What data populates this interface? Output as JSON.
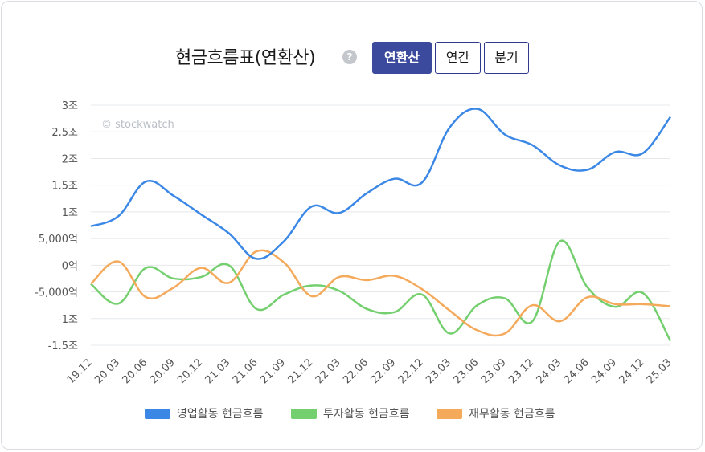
{
  "header": {
    "title": "현금흐름표(연환산)",
    "help_icon": "?",
    "tabs": [
      {
        "label": "연환산",
        "active": true
      },
      {
        "label": "연간",
        "active": false
      },
      {
        "label": "분기",
        "active": false
      }
    ]
  },
  "watermark": "© stockwatch",
  "colors": {
    "operating": "#3a87e6",
    "investing": "#74cf6e",
    "financing": "#f5a95a",
    "active_tab": "#3b4a9c"
  },
  "chart_data": {
    "type": "line",
    "categories": [
      "19.12",
      "20.03",
      "20.06",
      "20.09",
      "20.12",
      "21.03",
      "21.06",
      "21.09",
      "21.12",
      "22.03",
      "22.06",
      "22.09",
      "22.12",
      "23.03",
      "23.06",
      "23.09",
      "23.12",
      "24.03",
      "24.06",
      "24.09",
      "24.12",
      "25.03"
    ],
    "y_ticks": [
      {
        "value": 3,
        "label": "3조"
      },
      {
        "value": 2.5,
        "label": "2.5조"
      },
      {
        "value": 2,
        "label": "2조"
      },
      {
        "value": 1.5,
        "label": "1.5조"
      },
      {
        "value": 1,
        "label": "1조"
      },
      {
        "value": 0.5,
        "label": "5,000억"
      },
      {
        "value": 0,
        "label": "0억"
      },
      {
        "value": -0.5,
        "label": "-5,000억"
      },
      {
        "value": -1,
        "label": "-1조"
      },
      {
        "value": -1.5,
        "label": "-1.5조"
      }
    ],
    "ylim": [
      -1.5,
      3
    ],
    "unit": "조",
    "grid": true,
    "legend_position": "bottom",
    "series": [
      {
        "name": "영업활동 현금흐름",
        "color": "#3a87e6",
        "values": [
          0.73,
          0.92,
          1.57,
          1.3,
          0.95,
          0.6,
          0.12,
          0.45,
          1.1,
          0.98,
          1.35,
          1.62,
          1.55,
          2.58,
          2.93,
          2.45,
          2.25,
          1.87,
          1.79,
          2.12,
          2.1,
          2.78
        ]
      },
      {
        "name": "투자활동 현금흐름",
        "color": "#74cf6e",
        "values": [
          -0.35,
          -0.72,
          -0.05,
          -0.25,
          -0.22,
          0.0,
          -0.82,
          -0.55,
          -0.38,
          -0.48,
          -0.82,
          -0.88,
          -0.55,
          -1.28,
          -0.75,
          -0.62,
          -1.05,
          0.45,
          -0.42,
          -0.78,
          -0.52,
          -1.42
        ]
      },
      {
        "name": "재무활동 현금흐름",
        "color": "#f5a95a",
        "values": [
          -0.35,
          0.07,
          -0.6,
          -0.42,
          -0.05,
          -0.33,
          0.26,
          0.05,
          -0.58,
          -0.22,
          -0.28,
          -0.2,
          -0.45,
          -0.85,
          -1.22,
          -1.28,
          -0.75,
          -1.05,
          -0.6,
          -0.73,
          -0.73,
          -0.77
        ]
      }
    ]
  }
}
